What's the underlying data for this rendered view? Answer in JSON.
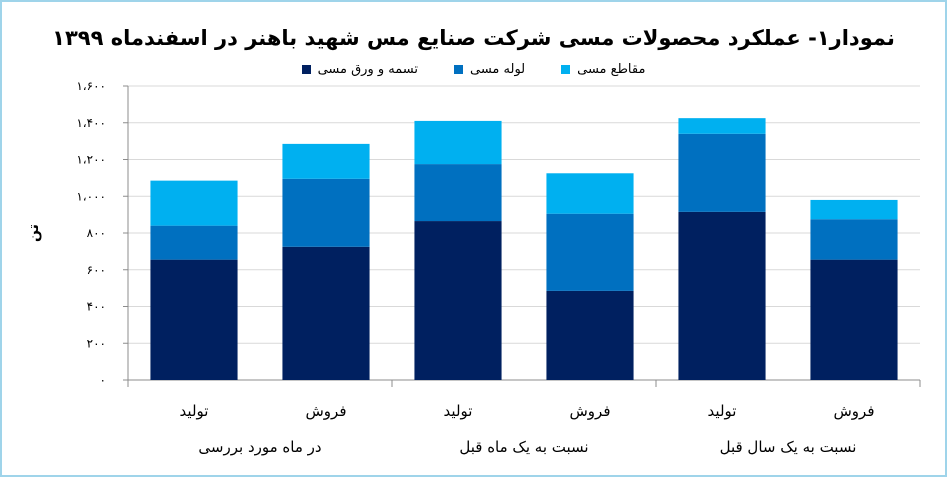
{
  "chart_data": {
    "type": "bar",
    "stacked": true,
    "title": "نمودار۱- عملکرد محصولات مسی شرکت صنایع مس شهید باهنر در اسفندماه ۱۳۹۹",
    "ylabel": "تن",
    "ylim": [
      0,
      1600
    ],
    "yticks": [
      0,
      200,
      400,
      600,
      800,
      1000,
      1200,
      1400,
      1600
    ],
    "ytick_labels": [
      "۰",
      "۲۰۰",
      "۴۰۰",
      "۶۰۰",
      "۸۰۰",
      "۱،۰۰۰",
      "۱،۲۰۰",
      "۱،۴۰۰",
      "۱،۶۰۰"
    ],
    "grid": true,
    "legend": "top",
    "categories": [
      "تولید",
      "فروش",
      "تولید",
      "فروش",
      "تولید",
      "فروش"
    ],
    "groups": [
      "در ماه مورد بررسی",
      "نسبت به یک ماه قبل",
      "نسبت به یک سال قبل"
    ],
    "series": [
      {
        "name": "تسمه و ورق مسی",
        "color": "#002060",
        "values": [
          655,
          725,
          865,
          485,
          915,
          655
        ]
      },
      {
        "name": "لوله مسی",
        "color": "#0070c0",
        "values": [
          185,
          370,
          310,
          420,
          425,
          220
        ]
      },
      {
        "name": "مقاطع مسی",
        "color": "#00b0f0",
        "values": [
          245,
          190,
          235,
          220,
          85,
          105
        ]
      }
    ]
  }
}
